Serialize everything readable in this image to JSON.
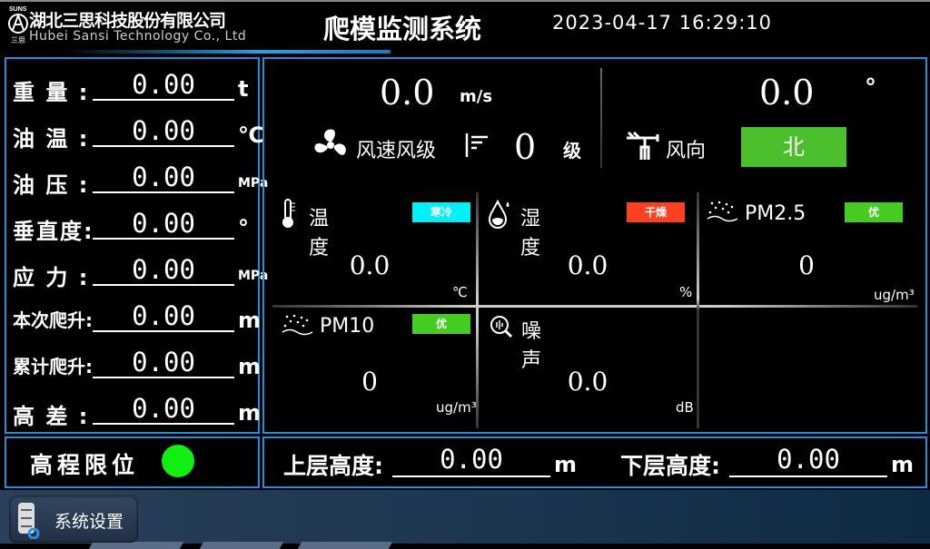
{
  "header": {
    "logo_top": "SUNS",
    "company_cn": "湖北三思科技股份有限公司",
    "company_en": "Hubei Sansi Technology Co., Ltd",
    "title": "爬模监测系统",
    "datetime": "2023-04-17 16:29:10"
  },
  "left": {
    "rows": [
      {
        "label": "重 量 :",
        "value": "0.00",
        "unit": "t"
      },
      {
        "label": "油 温 :",
        "value": "0.00",
        "unit": "℃"
      },
      {
        "label": "油 压 :",
        "value": "0.00",
        "unit": "MPa"
      },
      {
        "label": "垂直度:",
        "value": "0.00",
        "unit": "°"
      },
      {
        "label": "应 力 :",
        "value": "0.00",
        "unit": "MPa"
      },
      {
        "label": "本次爬升:",
        "value": "0.00",
        "unit": "m"
      },
      {
        "label": "累计爬升:",
        "value": "0.00",
        "unit": "m"
      },
      {
        "label": "高 差 :",
        "value": "0.00",
        "unit": "m"
      }
    ]
  },
  "wind": {
    "speed": "0.0",
    "speed_unit": "m/s",
    "speed_label": "风速风级",
    "level": "0",
    "level_unit": "级",
    "direction_deg": "0.0",
    "deg_unit": "°",
    "direction_label": "风向",
    "direction": "北",
    "direction_color": "#4cbf2c"
  },
  "env": [
    {
      "label": "温度",
      "badge": "寒冷",
      "badge_color": "#00f0f8",
      "value": "0.0",
      "unit": "℃",
      "icon": "thermometer-icon"
    },
    {
      "label": "湿度",
      "badge": "干燥",
      "badge_color": "#ff4020",
      "value": "0.0",
      "unit": "%",
      "icon": "droplet-icon"
    },
    {
      "label": "PM2.5",
      "badge": "优",
      "badge_color": "#44cc22",
      "value": "0",
      "unit": "ug/m³",
      "icon": "dust-icon"
    },
    {
      "label": "PM10",
      "badge": "优",
      "badge_color": "#44cc22",
      "value": "0",
      "unit": "ug/m³",
      "icon": "dust-icon"
    },
    {
      "label": "噪声",
      "value": "0.0",
      "unit": "dB",
      "icon": "noise-icon"
    }
  ],
  "limit": {
    "label": "高程限位",
    "status_color": "#11ee11"
  },
  "heights": {
    "upper_label": "上层高度:",
    "upper_value": "0.00",
    "upper_unit": "m",
    "lower_label": "下层高度:",
    "lower_value": "0.00",
    "lower_unit": "m"
  },
  "footer": {
    "settings_label": "系统设置"
  }
}
